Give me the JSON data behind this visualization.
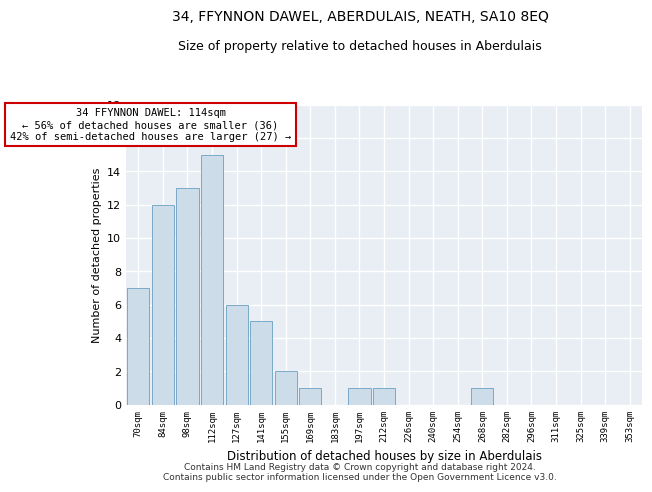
{
  "title": "34, FFYNNON DAWEL, ABERDULAIS, NEATH, SA10 8EQ",
  "subtitle": "Size of property relative to detached houses in Aberdulais",
  "xlabel": "Distribution of detached houses by size in Aberdulais",
  "ylabel": "Number of detached properties",
  "categories": [
    "70sqm",
    "84sqm",
    "98sqm",
    "112sqm",
    "127sqm",
    "141sqm",
    "155sqm",
    "169sqm",
    "183sqm",
    "197sqm",
    "212sqm",
    "226sqm",
    "240sqm",
    "254sqm",
    "268sqm",
    "282sqm",
    "296sqm",
    "311sqm",
    "325sqm",
    "339sqm",
    "353sqm"
  ],
  "values": [
    7,
    12,
    13,
    15,
    6,
    5,
    2,
    1,
    0,
    1,
    1,
    0,
    0,
    0,
    1,
    0,
    0,
    0,
    0,
    0,
    0
  ],
  "bar_color": "#ccdce8",
  "bar_edge_color": "#7aaac8",
  "annotation_box_text": "34 FFYNNON DAWEL: 114sqm\n← 56% of detached houses are smaller (36)\n42% of semi-detached houses are larger (27) →",
  "annotation_box_color": "#ffffff",
  "annotation_box_edge_color": "#cc0000",
  "ylim": [
    0,
    18
  ],
  "yticks": [
    0,
    2,
    4,
    6,
    8,
    10,
    12,
    14,
    16,
    18
  ],
  "background_color": "#e8eef4",
  "grid_color": "#ffffff",
  "footer": "Contains HM Land Registry data © Crown copyright and database right 2024.\nContains public sector information licensed under the Open Government Licence v3.0.",
  "title_fontsize": 10,
  "subtitle_fontsize": 9,
  "xlabel_fontsize": 8.5,
  "ylabel_fontsize": 8,
  "footer_fontsize": 6.5,
  "annot_fontsize": 7.5
}
